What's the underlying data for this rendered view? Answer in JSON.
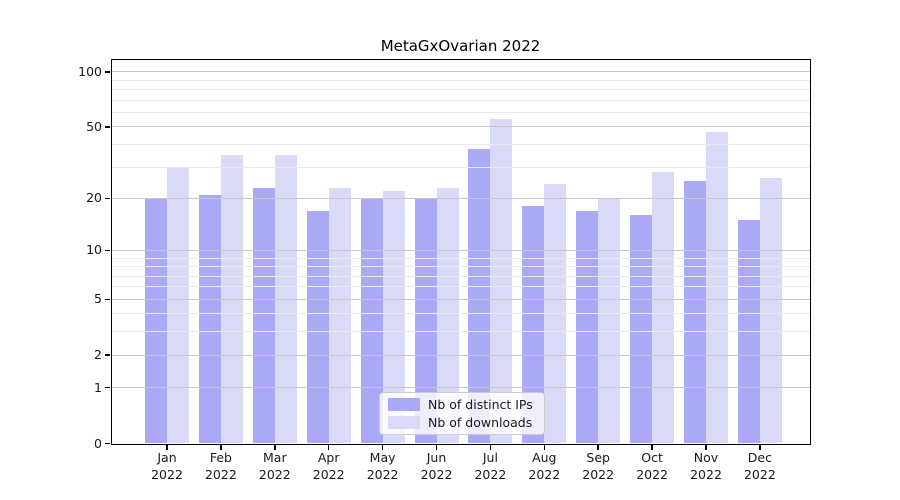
{
  "chart_data": {
    "type": "bar",
    "title": "MetaGxOvarian 2022",
    "x_tick_months": [
      "Jan",
      "Feb",
      "Mar",
      "Apr",
      "May",
      "Jun",
      "Jul",
      "Aug",
      "Sep",
      "Oct",
      "Nov",
      "Dec"
    ],
    "x_tick_year": "2022",
    "series": [
      {
        "name": "Nb of distinct IPs",
        "color": "#a9a9f5",
        "values": [
          20,
          21,
          23,
          17,
          20,
          20,
          38,
          18,
          17,
          16,
          25,
          15
        ]
      },
      {
        "name": "Nb of downloads",
        "color": "#d9d9f8",
        "values": [
          30,
          35,
          35,
          23,
          22,
          23,
          55,
          24,
          20,
          28,
          47,
          26
        ]
      }
    ],
    "yscale": "log1p",
    "ylim": [
      0,
      118
    ],
    "yticks": [
      0,
      1,
      2,
      5,
      10,
      20,
      50,
      100
    ],
    "minor_gridlines": [
      3,
      4,
      6,
      7,
      8,
      9,
      30,
      40,
      60,
      70,
      80,
      90
    ],
    "grid": "on",
    "grid_above_bars": true,
    "legend_position": "lower-center-inside",
    "colors": {
      "major_grid": "#c8c8c8",
      "minor_grid": "#ebebeb",
      "axis": "#000000",
      "text": "#1a1a1a",
      "background": "#ffffff"
    }
  }
}
